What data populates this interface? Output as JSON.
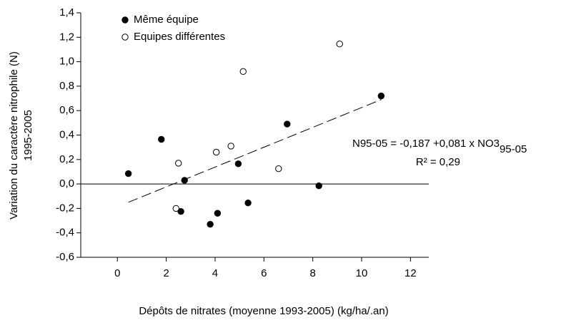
{
  "chart_data": {
    "type": "scatter",
    "x_label": "Dépôts de nitrates (moyenne 1993-2005) (kg/ha/.an)",
    "y_label": [
      "Variation du caractère nitrophile (N)",
      "1995-2005"
    ],
    "xlim": [
      -1.5,
      12.75
    ],
    "ylim": [
      -0.6,
      1.4
    ],
    "xticks": [
      0,
      2,
      4,
      6,
      8,
      10,
      12
    ],
    "yticks": [
      {
        "value": -0.6,
        "label": "-0,6"
      },
      {
        "value": -0.4,
        "label": "-0,4"
      },
      {
        "value": -0.2,
        "label": "-0,2"
      },
      {
        "value": 0,
        "label": "0,0"
      },
      {
        "value": 0.2,
        "label": "0,2"
      },
      {
        "value": 0.4,
        "label": "0,4"
      },
      {
        "value": 0.6,
        "label": "0,6"
      },
      {
        "value": 0.8,
        "label": "0,8"
      },
      {
        "value": 1.0,
        "label": "1,0"
      },
      {
        "value": 1.2,
        "label": "1,2"
      },
      {
        "value": 1.4,
        "label": "1,4"
      }
    ],
    "legend": "upper left",
    "hline": 0,
    "series": [
      {
        "name": "Même équipe",
        "filled": true,
        "color": "#000000",
        "x": [
          0.45,
          1.8,
          2.6,
          2.75,
          3.8,
          4.1,
          4.95,
          5.35,
          6.95,
          8.25,
          10.8
        ],
        "values": [
          0.085,
          0.365,
          -0.225,
          0.03,
          -0.33,
          -0.24,
          0.165,
          -0.155,
          0.49,
          -0.015,
          0.72
        ]
      },
      {
        "name": "Equipes différentes",
        "filled": false,
        "color": "#000000",
        "x": [
          2.4,
          2.5,
          4.05,
          4.65,
          5.15,
          6.6,
          9.1
        ],
        "values": [
          -0.2,
          0.17,
          0.26,
          0.31,
          0.92,
          0.125,
          1.145
        ]
      }
    ],
    "trendline": {
      "x": [
        0.45,
        10.8
      ],
      "y": [
        -0.15,
        0.69
      ]
    },
    "annotations": {
      "equation": "N95-05 = -0,187 +0,081 x NO3",
      "equation_sub": "95-05",
      "r2": "R² = 0,29"
    }
  }
}
